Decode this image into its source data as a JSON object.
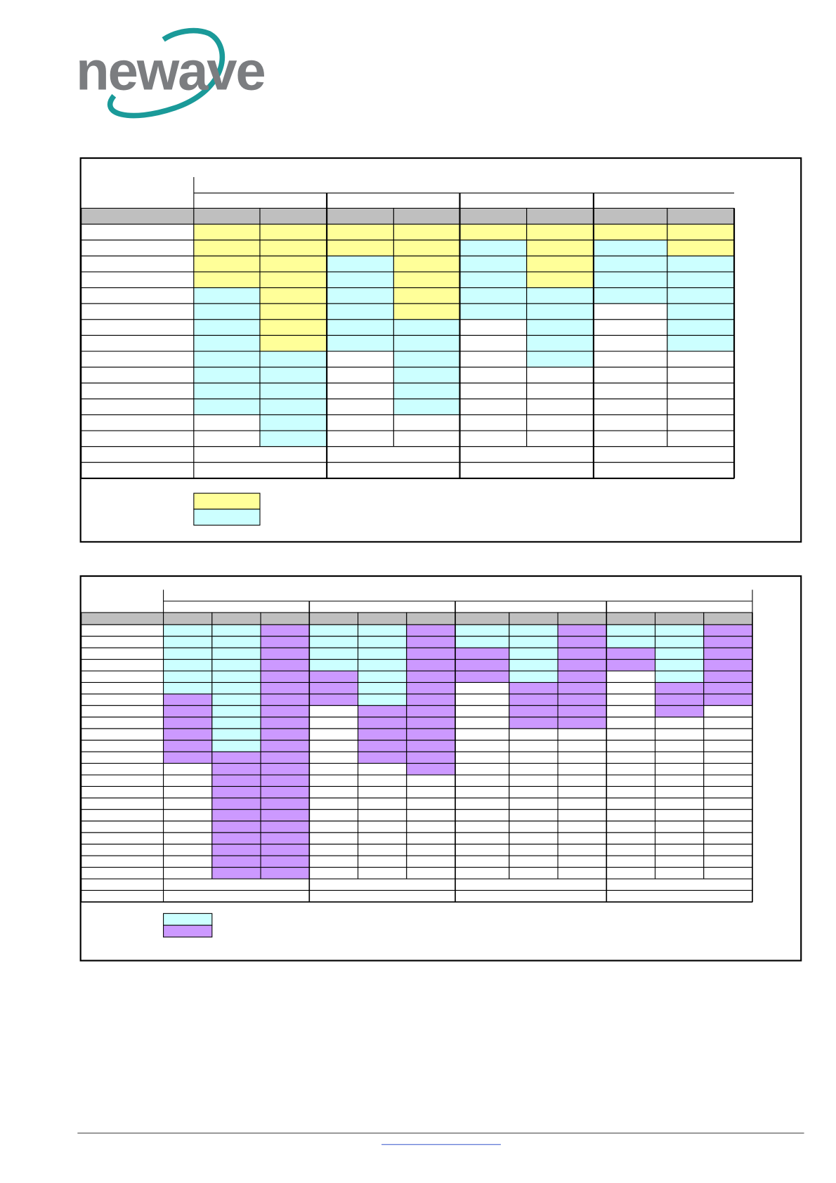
{
  "header": {
    "logo": "newave"
  }
}
